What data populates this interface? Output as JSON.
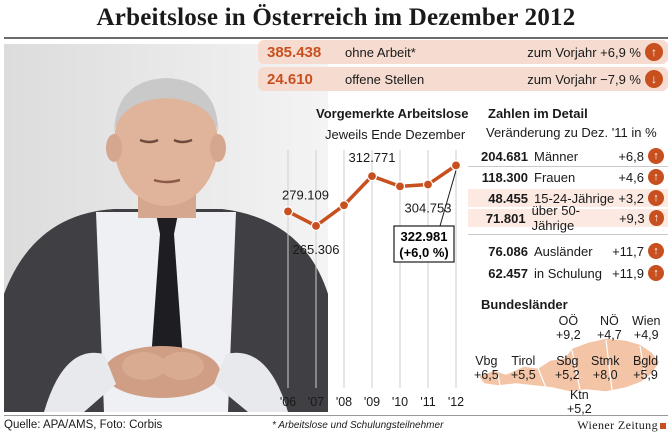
{
  "title": "Arbeitslose in Österreich im Dezember 2012",
  "headline": [
    {
      "value": "385.438",
      "label": "ohne Arbeit*",
      "change": "zum Vorjahr +6,9 %",
      "direction": "up"
    },
    {
      "value": "24.610",
      "label": "offene Stellen",
      "change": "zum Vorjahr −7,9 %",
      "direction": "down"
    }
  ],
  "arrow_up": "↑",
  "arrow_down": "↓",
  "chart_data": {
    "type": "line",
    "title": "Vorgemerkte Arbeitslose",
    "subtitle": "Jeweils Ende Dezember",
    "categories": [
      "'06",
      "'07",
      "'08",
      "'09",
      "'10",
      "'11",
      "'12"
    ],
    "values": [
      279109,
      265306,
      285000,
      312771,
      303000,
      304753,
      322981
    ],
    "labels": [
      "279.109",
      "265.306",
      "",
      "312.771",
      "",
      "304.753",
      "322.981"
    ],
    "callout": [
      "322.981",
      "(+6,0 %)"
    ],
    "ylim": [
      250000,
      330000
    ],
    "color": "#c8501f"
  },
  "details": {
    "title": "Zahlen im Detail",
    "subtitle": "Veränderung zu Dez. '11 in %",
    "rows": [
      {
        "value": "204.681",
        "label": "Männer",
        "change": "+6,8"
      },
      {
        "value": "118.300",
        "label": "Frauen",
        "change": "+4,6"
      },
      {
        "value": "48.455",
        "label": "15-24-Jährige",
        "change": "+3,2"
      },
      {
        "value": "71.801",
        "label": "über 50-Jährige",
        "change": "+9,3"
      },
      {
        "value": "76.086",
        "label": "Ausländer",
        "change": "+11,7"
      },
      {
        "value": "62.457",
        "label": "in Schulung",
        "change": "+11,9"
      }
    ]
  },
  "bundeslaender": {
    "title": "Bundesländer",
    "items": [
      {
        "name": "OÖ",
        "change": "+9,2"
      },
      {
        "name": "NÖ",
        "change": "+4,7"
      },
      {
        "name": "Wien",
        "change": "+4,9"
      },
      {
        "name": "Vbg",
        "change": "+6,5"
      },
      {
        "name": "Tirol",
        "change": "+5,5"
      },
      {
        "name": "Sbg",
        "change": "+5,2"
      },
      {
        "name": "Stmk",
        "change": "+8,0"
      },
      {
        "name": "Bgld",
        "change": "+5,9"
      },
      {
        "name": "Ktn",
        "change": "+5,2"
      }
    ]
  },
  "footer": {
    "source": "Quelle: APA/AMS, Foto: Corbis",
    "note": "* Arbeitslose und Schulungsteilnehmer",
    "brand": "Wiener Zeitung"
  },
  "colors": {
    "accent": "#c8501f",
    "highlight": "#f6dcd0",
    "map": "#f3c4a6"
  }
}
